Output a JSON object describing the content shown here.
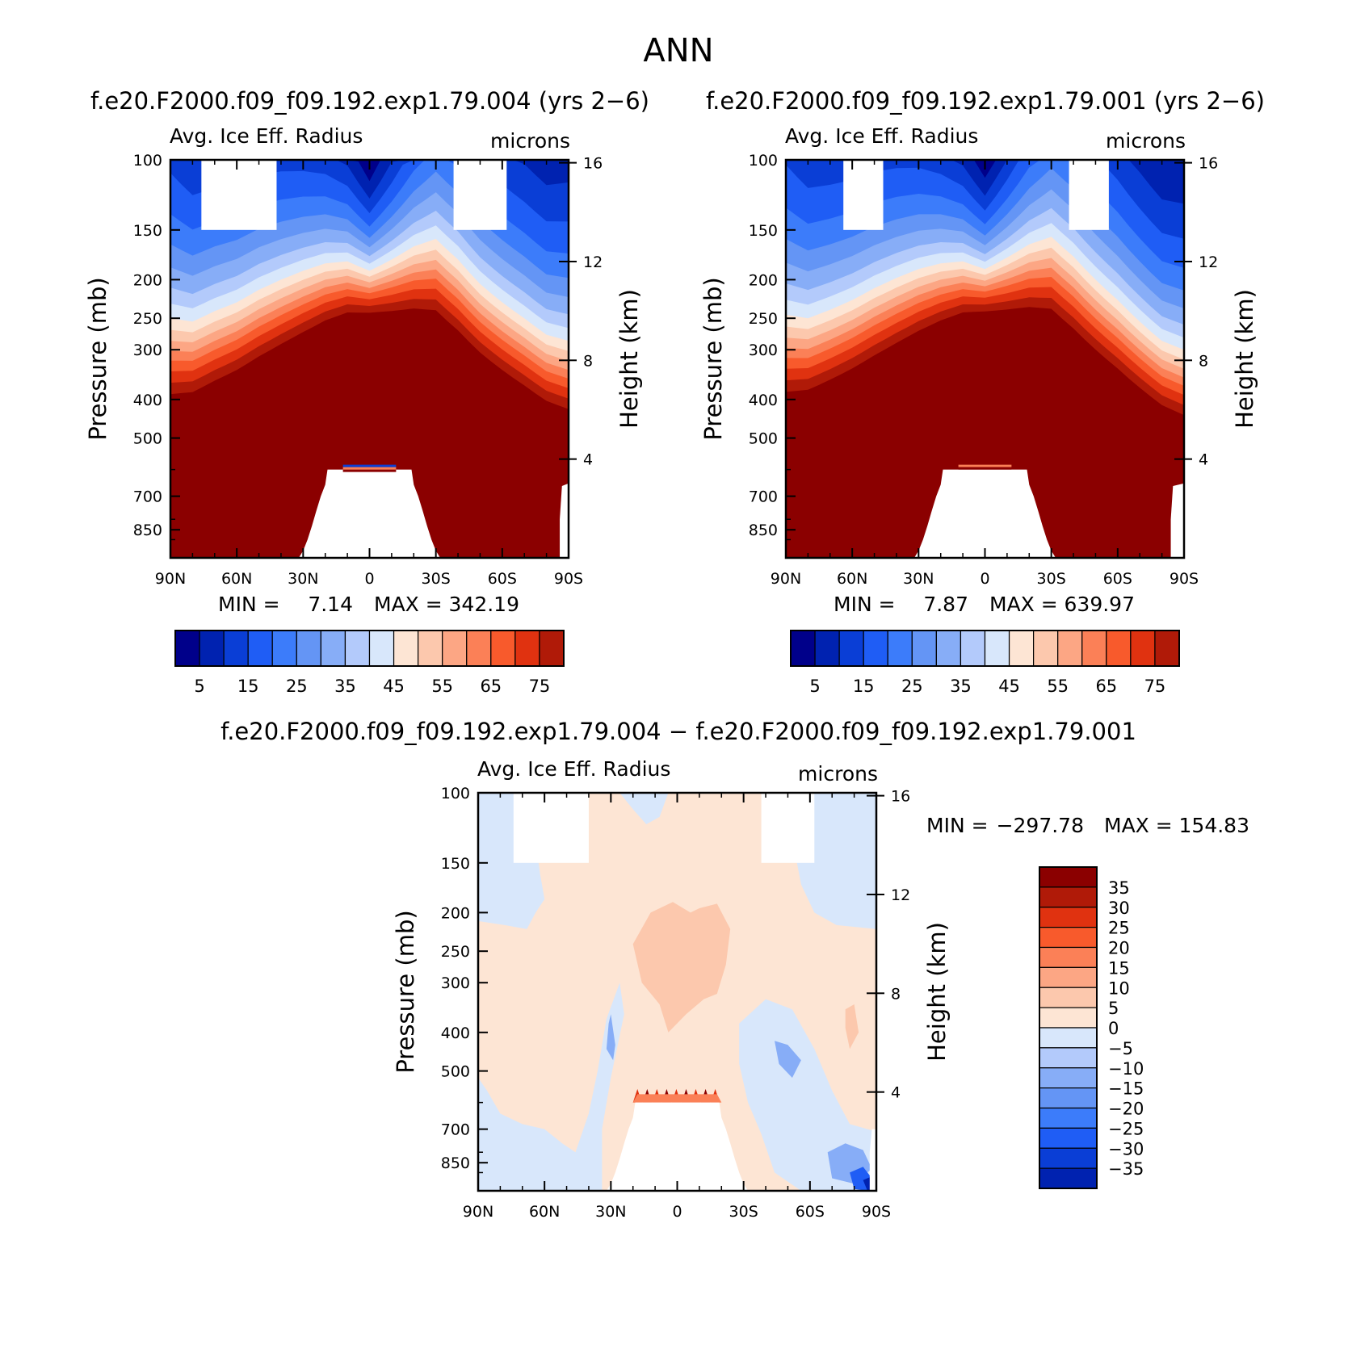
{
  "page": {
    "season_title": "ANN"
  },
  "panels": [
    {
      "case_title": "f.e20.F2000.f09_f09.192.exp1.79.004 (yrs 2−6)",
      "variable": "Avg. Ice Eff. Radius",
      "units": "microns",
      "stats": {
        "min_label": "MIN =",
        "min_value": "7.14",
        "max_label": "MAX =",
        "max_value": "342.19"
      }
    },
    {
      "case_title": "f.e20.F2000.f09_f09.192.exp1.79.001 (yrs 2−6)",
      "variable": "Avg. Ice Eff. Radius",
      "units": "microns",
      "stats": {
        "min_label": "MIN =",
        "min_value": "7.87",
        "max_label": "MAX =",
        "max_value": "639.97"
      }
    },
    {
      "case_title": "f.e20.F2000.f09_f09.192.exp1.79.004 − f.e20.F2000.f09_f09.192.exp1.79.001",
      "variable": "Avg. Ice Eff. Radius",
      "units": "microns",
      "stats": {
        "min_label": "MIN =",
        "min_value": "−297.78",
        "max_label": "MAX =",
        "max_value": "154.83"
      }
    }
  ],
  "chart_data": [
    {
      "type": "heatmap",
      "title": "Avg. Ice Eff. Radius",
      "xlabel": "",
      "ylabel": "Pressure (mb)",
      "ylabel_right": "Height (km)",
      "x_ticks": [
        "90N",
        "60N",
        "30N",
        "0",
        "30S",
        "60S",
        "90S"
      ],
      "y_ticks": [
        "100",
        "150",
        "200",
        "250",
        "300",
        "400",
        "500",
        "700",
        "850"
      ],
      "y_ticks_right": [
        "16",
        "12",
        "8",
        "4"
      ],
      "xlim": [
        90,
        -90
      ],
      "ylim": [
        100,
        1000
      ],
      "colorbar": {
        "orientation": "horizontal",
        "levels": [
          5,
          10,
          15,
          20,
          25,
          30,
          35,
          40,
          45,
          50,
          55,
          60,
          65,
          70,
          75
        ],
        "tick_labels": [
          "5",
          "15",
          "25",
          "35",
          "45",
          "55",
          "65",
          "75"
        ]
      },
      "field_profile": {
        "lat": [
          90,
          80,
          70,
          60,
          50,
          40,
          30,
          20,
          10,
          0,
          -10,
          -20,
          -30,
          -40,
          -50,
          -60,
          -70,
          -80,
          -90
        ],
        "p_center_mb": [
          250,
          255,
          240,
          228,
          212,
          200,
          190,
          182,
          180,
          190,
          178,
          165,
          158,
          178,
          205,
          228,
          250,
          275,
          285
        ]
      }
    },
    {
      "type": "heatmap",
      "title": "Avg. Ice Eff. Radius",
      "xlabel": "",
      "ylabel": "Pressure (mb)",
      "ylabel_right": "Height (km)",
      "x_ticks": [
        "90N",
        "60N",
        "30N",
        "0",
        "30S",
        "60S",
        "90S"
      ],
      "y_ticks": [
        "100",
        "150",
        "200",
        "250",
        "300",
        "400",
        "500",
        "700",
        "850"
      ],
      "y_ticks_right": [
        "16",
        "12",
        "8",
        "4"
      ],
      "xlim": [
        90,
        -90
      ],
      "ylim": [
        100,
        1000
      ],
      "colorbar": {
        "orientation": "horizontal",
        "levels": [
          5,
          10,
          15,
          20,
          25,
          30,
          35,
          40,
          45,
          50,
          55,
          60,
          65,
          70,
          75
        ],
        "tick_labels": [
          "5",
          "15",
          "25",
          "35",
          "45",
          "55",
          "65",
          "75"
        ]
      },
      "field_profile": {
        "lat": [
          90,
          80,
          70,
          60,
          50,
          40,
          30,
          20,
          10,
          0,
          -10,
          -20,
          -30,
          -40,
          -50,
          -60,
          -70,
          -80,
          -90
        ],
        "p_center_mb": [
          245,
          250,
          238,
          225,
          210,
          198,
          188,
          182,
          180,
          188,
          176,
          163,
          156,
          175,
          200,
          225,
          255,
          285,
          300
        ]
      }
    },
    {
      "type": "heatmap",
      "title": "Avg. Ice Eff. Radius",
      "xlabel": "",
      "ylabel": "Pressure (mb)",
      "ylabel_right": "Height (km)",
      "x_ticks": [
        "90N",
        "60N",
        "30N",
        "0",
        "30S",
        "60S",
        "90S"
      ],
      "y_ticks": [
        "100",
        "150",
        "200",
        "250",
        "300",
        "400",
        "500",
        "700",
        "850"
      ],
      "y_ticks_right": [
        "16",
        "12",
        "8",
        "4"
      ],
      "xlim": [
        90,
        -90
      ],
      "ylim": [
        100,
        1000
      ],
      "colorbar": {
        "orientation": "vertical",
        "levels": [
          -35,
          -30,
          -25,
          -20,
          -15,
          -10,
          -5,
          0,
          5,
          10,
          15,
          20,
          25,
          30,
          35
        ],
        "tick_labels": [
          "35",
          "30",
          "25",
          "20",
          "15",
          "10",
          "5",
          "0",
          "−5",
          "−10",
          "−15",
          "−20",
          "−25",
          "−30",
          "−35"
        ]
      }
    }
  ],
  "colors": {
    "blue_red_16": [
      "#00008a",
      "#0022b0",
      "#0a3ed6",
      "#1f5df5",
      "#3c7cfa",
      "#6495f5",
      "#87adf7",
      "#b3cafb",
      "#d8e7fb",
      "#fde5d4",
      "#fcc8ad",
      "#fca684",
      "#fb8057",
      "#f85a2c",
      "#e03210",
      "#b01a08",
      "#8b0000"
    ],
    "missing": "#ffffff"
  }
}
